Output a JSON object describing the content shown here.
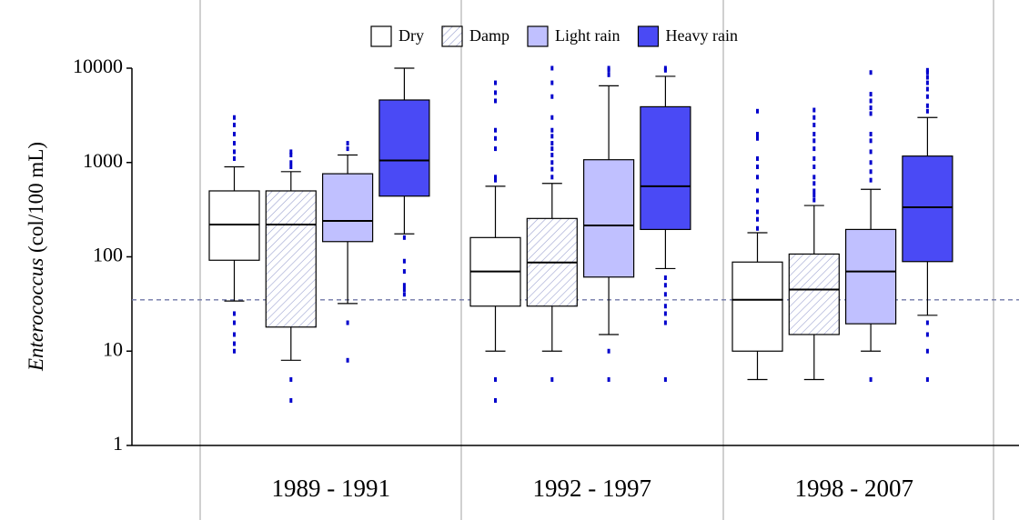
{
  "chart_data": {
    "type": "box",
    "ylabel": {
      "species": "Enterococcus",
      "unit": "(col/100 mL)"
    },
    "categories": [
      "1989 - 1991",
      "1992 - 1997",
      "1998 - 2007"
    ],
    "ylim": [
      1,
      10000
    ],
    "yticks": [
      1,
      10,
      100,
      1000,
      10000
    ],
    "log_scale": true,
    "legend": "top",
    "reference_line": 35,
    "outlier_color": "#0000cc",
    "series": [
      {
        "name": "Dry",
        "color": "#ffffff",
        "hatch": false,
        "boxes": [
          {
            "whislo": 34,
            "q1": 92,
            "median": 220,
            "q3": 500,
            "whishi": 900,
            "outliers": [
              3000,
              2500,
              2000,
              1600,
              1300,
              1100,
              25,
              20,
              15,
              12,
              10
            ]
          },
          {
            "whislo": 10,
            "q1": 30,
            "median": 70,
            "q3": 160,
            "whishi": 560,
            "outliers": [
              7000,
              5500,
              4500,
              2200,
              1800,
              1400,
              700,
              650,
              5,
              3
            ]
          },
          {
            "whislo": 5,
            "q1": 10,
            "median": 35,
            "q3": 88,
            "whishi": 180,
            "outliers": [
              3500,
              2000,
              1800,
              1100,
              900,
              700,
              500,
              400,
              300,
              250,
              200
            ]
          }
        ]
      },
      {
        "name": "Damp",
        "color": "#ffffff",
        "hatch": true,
        "boxes": [
          {
            "whislo": 8,
            "q1": 18,
            "median": 220,
            "q3": 500,
            "whishi": 800,
            "outliers": [
              1300,
              1200,
              1000,
              900,
              5,
              3
            ]
          },
          {
            "whislo": 10,
            "q1": 30,
            "median": 87,
            "q3": 255,
            "whishi": 600,
            "outliers": [
              10000,
              7000,
              5000,
              3000,
              2200,
              1900,
              1600,
              1400,
              1200,
              1000,
              850,
              700,
              5
            ]
          },
          {
            "whislo": 5,
            "q1": 15,
            "median": 45,
            "q3": 107,
            "whishi": 350,
            "outliers": [
              3600,
              3000,
              2500,
              2000,
              1700,
              1400,
              1100,
              900,
              700,
              600,
              500,
              450,
              400
            ]
          }
        ]
      },
      {
        "name": "Light rain",
        "color": "#c0c0ff",
        "hatch": false,
        "boxes": [
          {
            "whislo": 32,
            "q1": 145,
            "median": 240,
            "q3": 760,
            "whishi": 1200,
            "outliers": [
              1600,
              1400,
              20,
              8
            ]
          },
          {
            "whislo": 15,
            "q1": 61,
            "median": 215,
            "q3": 1070,
            "whishi": 6500,
            "outliers": [
              10000,
              9500,
              8500,
              10,
              5
            ]
          },
          {
            "whislo": 10,
            "q1": 19.5,
            "median": 70,
            "q3": 195,
            "whishi": 520,
            "outliers": [
              9000,
              5300,
              4500,
              3800,
              3300,
              2000,
              1700,
              1300,
              1000,
              800,
              650,
              5
            ]
          }
        ]
      },
      {
        "name": "Heavy rain",
        "color": "#4a4af5",
        "hatch": false,
        "boxes": [
          {
            "whislo": 175,
            "q1": 440,
            "median": 1050,
            "q3": 4600,
            "whishi": 10000,
            "outliers": [
              160,
              90,
              70,
              50,
              45,
              40
            ]
          },
          {
            "whislo": 75,
            "q1": 195,
            "median": 560,
            "q3": 3900,
            "whishi": 8200,
            "outliers": [
              10000,
              9500,
              60,
              50,
              40,
              30,
              25,
              20,
              5
            ]
          },
          {
            "whislo": 24,
            "q1": 89,
            "median": 335,
            "q3": 1170,
            "whishi": 3000,
            "outliers": [
              9500,
              9000,
              8000,
              7000,
              6000,
              5000,
              4000,
              3500,
              20,
              15,
              10,
              5
            ]
          }
        ]
      }
    ]
  }
}
